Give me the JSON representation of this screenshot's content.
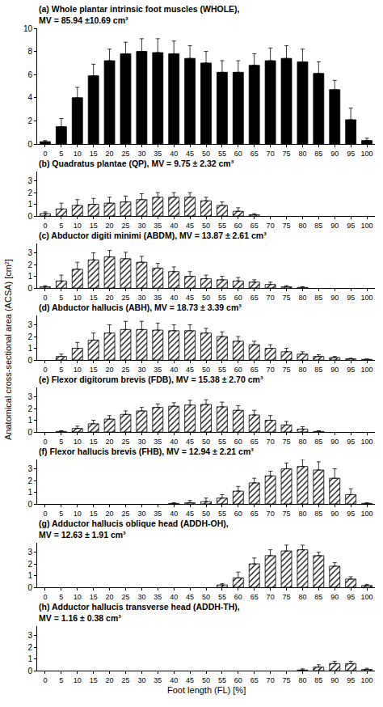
{
  "chart_data": [
    {
      "type": "bar",
      "title": "(a) Whole plantar intrinsic foot muscles (WHOLE), MV = 85.94 ±10.69 cm³",
      "ylabel": "Anatomical cross-sectional area (ACSA) [cm²]",
      "x": [
        0,
        5,
        10,
        15,
        20,
        25,
        30,
        35,
        40,
        45,
        50,
        55,
        60,
        65,
        70,
        75,
        80,
        85,
        90,
        95,
        100
      ],
      "values": [
        0.2,
        1.5,
        4.0,
        5.9,
        7.2,
        7.8,
        8.0,
        7.9,
        7.8,
        7.4,
        7.0,
        6.2,
        6.2,
        6.8,
        7.2,
        7.4,
        7.1,
        6.1,
        4.7,
        2.1,
        0.3
      ],
      "errors": [
        0.1,
        0.7,
        0.9,
        1.0,
        1.0,
        1.0,
        1.1,
        1.2,
        1.1,
        1.1,
        1.0,
        1.0,
        1.0,
        1.0,
        1.1,
        1.1,
        1.1,
        1.0,
        0.8,
        1.0,
        0.2
      ],
      "color": "#000000",
      "marker": "solid",
      "grid": false,
      "xlim": [
        -2.5,
        102.5
      ],
      "xticks": [
        0,
        5,
        10,
        15,
        20,
        25,
        30,
        35,
        40,
        45,
        50,
        55,
        60,
        65,
        70,
        75,
        80,
        85,
        90,
        95,
        100
      ],
      "ylim": [
        0,
        10
      ],
      "yticks": [
        0,
        2,
        4,
        6,
        8,
        10
      ]
    },
    {
      "type": "bar",
      "title": "(b) Quadratus plantae (QP), MV = 9.75 ± 2.32 cm³",
      "x": [
        0,
        5,
        10,
        15,
        20,
        25,
        30,
        35,
        40,
        45,
        50,
        55,
        60,
        65,
        70,
        75,
        80,
        85,
        90,
        95,
        100
      ],
      "values": [
        0.2,
        0.6,
        0.9,
        1.0,
        1.1,
        1.2,
        1.4,
        1.6,
        1.6,
        1.6,
        1.3,
        0.9,
        0.4,
        0.1,
        null,
        null,
        null,
        null,
        null,
        null,
        null
      ],
      "errors": [
        0.15,
        0.5,
        0.5,
        0.5,
        0.5,
        0.5,
        0.5,
        0.4,
        0.4,
        0.4,
        0.3,
        0.3,
        0.3,
        0.1,
        null,
        null,
        null,
        null,
        null,
        null,
        null
      ],
      "color": "#000000",
      "marker": "hatched",
      "grid": false,
      "xlim": [
        -2.5,
        102.5
      ],
      "xticks": [
        0,
        5,
        10,
        15,
        20,
        25,
        30,
        35,
        40,
        45,
        50,
        55,
        60,
        65,
        70,
        75,
        80,
        85,
        90,
        95,
        100
      ],
      "ylim": [
        0,
        3.8
      ],
      "yticks": [
        0,
        1,
        2,
        3
      ]
    },
    {
      "type": "bar",
      "title": "(c) Abductor digiti minimi (ABDM), MV = 13.87 ± 2.61 cm³",
      "x": [
        0,
        5,
        10,
        15,
        20,
        25,
        30,
        35,
        40,
        45,
        50,
        55,
        60,
        65,
        70,
        75,
        80,
        85,
        90,
        95,
        100
      ],
      "values": [
        0.1,
        0.6,
        1.6,
        2.4,
        2.65,
        2.5,
        2.2,
        1.7,
        1.4,
        1.0,
        0.8,
        0.7,
        0.6,
        0.5,
        0.3,
        0.1,
        0.05,
        null,
        null,
        null,
        null
      ],
      "errors": [
        0.1,
        0.5,
        0.6,
        0.6,
        0.55,
        0.55,
        0.5,
        0.4,
        0.4,
        0.4,
        0.3,
        0.3,
        0.3,
        0.2,
        0.2,
        0.1,
        0.05,
        null,
        null,
        null,
        null
      ],
      "color": "#000000",
      "marker": "hatched",
      "grid": false,
      "xlim": [
        -2.5,
        102.5
      ],
      "xticks": [
        0,
        5,
        10,
        15,
        20,
        25,
        30,
        35,
        40,
        45,
        50,
        55,
        60,
        65,
        70,
        75,
        80,
        85,
        90,
        95,
        100
      ],
      "ylim": [
        0,
        3.8
      ],
      "yticks": [
        0,
        1,
        2,
        3
      ]
    },
    {
      "type": "bar",
      "title": "(d) Abductor hallucis (ABH), MV = 18.73 ± 3.39 cm³",
      "x": [
        0,
        5,
        10,
        15,
        20,
        25,
        30,
        35,
        40,
        45,
        50,
        55,
        60,
        65,
        70,
        75,
        80,
        85,
        90,
        95,
        100
      ],
      "values": [
        null,
        0.3,
        1.0,
        1.7,
        2.3,
        2.6,
        2.6,
        2.55,
        2.5,
        2.5,
        2.3,
        2.0,
        1.6,
        1.3,
        1.0,
        0.7,
        0.5,
        0.3,
        0.2,
        0.1,
        0.05
      ],
      "errors": [
        null,
        0.2,
        0.5,
        0.6,
        0.7,
        0.7,
        0.7,
        0.6,
        0.5,
        0.5,
        0.4,
        0.4,
        0.4,
        0.3,
        0.3,
        0.3,
        0.2,
        0.15,
        0.1,
        0.05,
        0.03
      ],
      "color": "#000000",
      "marker": "hatched",
      "grid": false,
      "xlim": [
        -2.5,
        102.5
      ],
      "xticks": [
        0,
        5,
        10,
        15,
        20,
        25,
        30,
        35,
        40,
        45,
        50,
        55,
        60,
        65,
        70,
        75,
        80,
        85,
        90,
        95,
        100
      ],
      "ylim": [
        0,
        3.8
      ],
      "yticks": [
        0,
        1,
        2,
        3
      ]
    },
    {
      "type": "bar",
      "title": "(e) Flexor digitorum brevis (FDB), MV = 15.38 ± 2.70 cm³",
      "x": [
        0,
        5,
        10,
        15,
        20,
        25,
        30,
        35,
        40,
        45,
        50,
        55,
        60,
        65,
        70,
        75,
        80,
        85,
        90,
        95,
        100
      ],
      "values": [
        null,
        0.05,
        0.3,
        0.7,
        1.1,
        1.5,
        1.8,
        2.1,
        2.2,
        2.3,
        2.35,
        2.15,
        1.85,
        1.45,
        1.0,
        0.6,
        0.25,
        0.05,
        null,
        null,
        null
      ],
      "errors": [
        null,
        0.05,
        0.2,
        0.3,
        0.3,
        0.3,
        0.3,
        0.3,
        0.3,
        0.4,
        0.4,
        0.4,
        0.4,
        0.4,
        0.4,
        0.3,
        0.2,
        0.05,
        null,
        null,
        null
      ],
      "color": "#000000",
      "marker": "hatched",
      "grid": false,
      "xlim": [
        -2.5,
        102.5
      ],
      "xticks": [
        0,
        5,
        10,
        15,
        20,
        25,
        30,
        35,
        40,
        45,
        50,
        55,
        60,
        65,
        70,
        75,
        80,
        85,
        90,
        95,
        100
      ],
      "ylim": [
        0,
        3.8
      ],
      "yticks": [
        0,
        1,
        2,
        3
      ]
    },
    {
      "type": "bar",
      "title": "(f) Flexor hallucis brevis (FHB), MV = 12.94 ± 2.21 cm³",
      "x": [
        0,
        5,
        10,
        15,
        20,
        25,
        30,
        35,
        40,
        45,
        50,
        55,
        60,
        65,
        70,
        75,
        80,
        85,
        90,
        95,
        100
      ],
      "values": [
        null,
        null,
        null,
        null,
        null,
        null,
        null,
        null,
        0.05,
        0.1,
        0.2,
        0.5,
        1.1,
        1.8,
        2.4,
        3.0,
        3.2,
        2.9,
        2.2,
        0.8,
        0.05
      ],
      "errors": [
        null,
        null,
        null,
        null,
        null,
        null,
        null,
        null,
        0.05,
        0.2,
        0.3,
        0.3,
        0.4,
        0.4,
        0.4,
        0.5,
        0.6,
        0.7,
        0.8,
        0.5,
        0.05
      ],
      "color": "#000000",
      "marker": "hatched",
      "grid": false,
      "xlim": [
        -2.5,
        102.5
      ],
      "xticks": [
        0,
        5,
        10,
        15,
        20,
        25,
        30,
        35,
        40,
        45,
        50,
        55,
        60,
        65,
        70,
        75,
        80,
        85,
        90,
        95,
        100
      ],
      "ylim": [
        0,
        3.8
      ],
      "yticks": [
        0,
        1,
        2,
        3
      ]
    },
    {
      "type": "bar",
      "title": "(g) Adductor hallucis oblique head (ADDH-OH), MV = 12.63 ± 1.91 cm³",
      "x": [
        0,
        5,
        10,
        15,
        20,
        25,
        30,
        35,
        40,
        45,
        50,
        55,
        60,
        65,
        70,
        75,
        80,
        85,
        90,
        95,
        100
      ],
      "values": [
        null,
        null,
        null,
        null,
        null,
        null,
        null,
        null,
        null,
        null,
        null,
        0.2,
        0.8,
        2.0,
        2.7,
        3.1,
        3.2,
        2.7,
        1.8,
        0.7,
        0.15
      ],
      "errors": [
        null,
        null,
        null,
        null,
        null,
        null,
        null,
        null,
        null,
        null,
        null,
        0.1,
        0.5,
        0.5,
        0.5,
        0.5,
        0.4,
        0.3,
        0.3,
        0.2,
        0.1
      ],
      "color": "#000000",
      "marker": "hatched",
      "grid": false,
      "xlim": [
        -2.5,
        102.5
      ],
      "xticks": [
        0,
        5,
        10,
        15,
        20,
        25,
        30,
        35,
        40,
        45,
        50,
        55,
        60,
        65,
        70,
        75,
        80,
        85,
        90,
        95,
        100
      ],
      "ylim": [
        0,
        3.8
      ],
      "yticks": [
        0,
        1,
        2,
        3
      ]
    },
    {
      "type": "bar",
      "title": "(h) Adductor hallucis transverse head (ADDH-TH), MV = 1.16 ± 0.38 cm³",
      "xlabel": "Foot length (FL) [%]",
      "x": [
        0,
        5,
        10,
        15,
        20,
        25,
        30,
        35,
        40,
        45,
        50,
        55,
        60,
        65,
        70,
        75,
        80,
        85,
        90,
        95,
        100
      ],
      "values": [
        null,
        null,
        null,
        null,
        null,
        null,
        null,
        null,
        null,
        null,
        null,
        null,
        null,
        null,
        null,
        null,
        0.05,
        0.3,
        0.6,
        0.6,
        0.1
      ],
      "errors": [
        null,
        null,
        null,
        null,
        null,
        null,
        null,
        null,
        null,
        null,
        null,
        null,
        null,
        null,
        null,
        null,
        0.1,
        0.2,
        0.2,
        0.2,
        0.1
      ],
      "color": "#000000",
      "marker": "hatched",
      "grid": false,
      "xlim": [
        -2.5,
        102.5
      ],
      "xticks": [
        0,
        5,
        10,
        15,
        20,
        25,
        30,
        35,
        40,
        45,
        50,
        55,
        60,
        65,
        70,
        75,
        80,
        85,
        90,
        95,
        100
      ],
      "ylim": [
        0,
        3.8
      ],
      "yticks": [
        0,
        1,
        2,
        3
      ]
    }
  ]
}
